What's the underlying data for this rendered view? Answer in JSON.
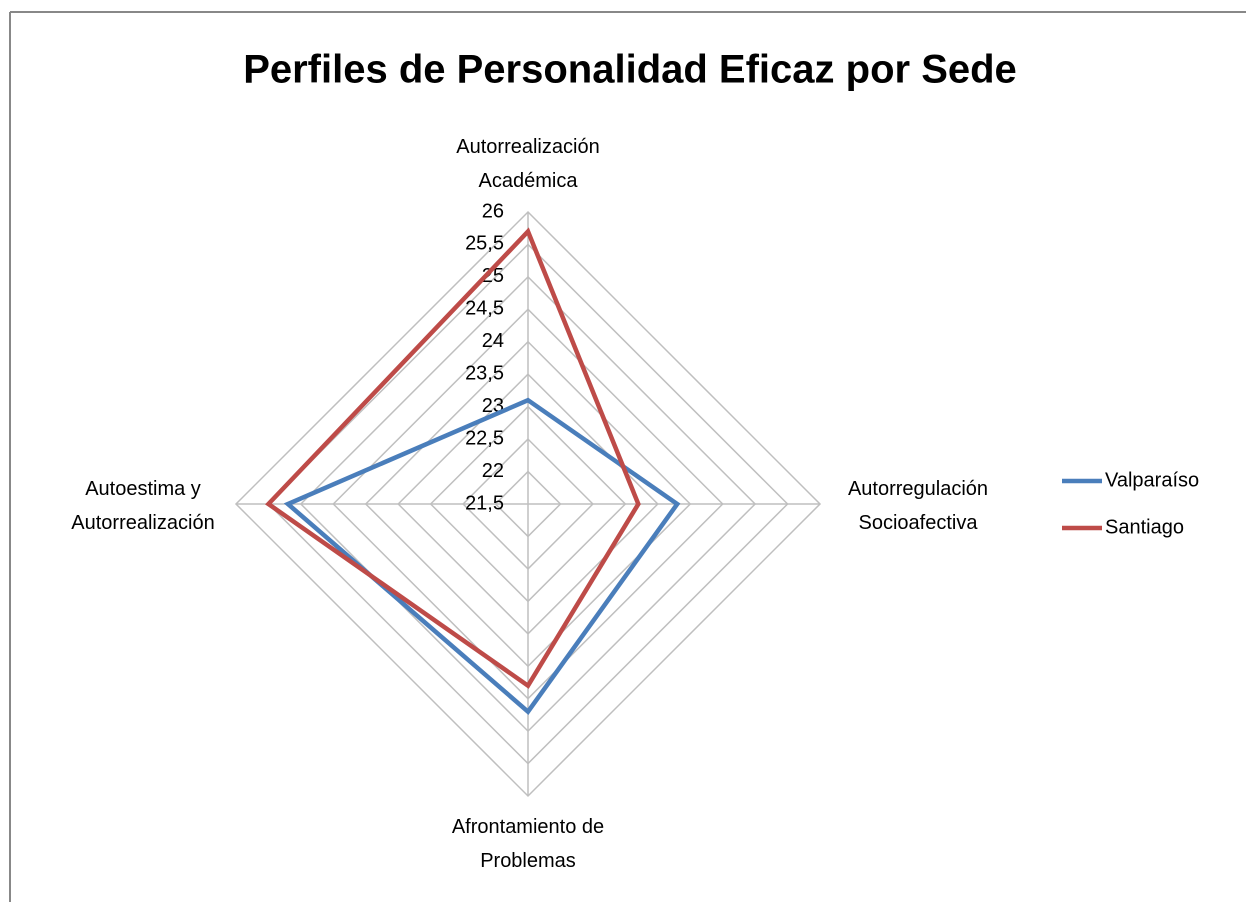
{
  "chart_data": {
    "type": "radar",
    "title": "Perfiles de Personalidad Eficaz por Sede",
    "categories": [
      "Autorrealización\nAcadémica",
      "Autorregulación\nSocioafectiva",
      "Afrontamiento de\nProblemas",
      "Autoestima y\nAutorrealización"
    ],
    "series": [
      {
        "name": "Valparaíso",
        "color": "#4a7ebb",
        "values": [
          23.1,
          23.8,
          24.7,
          25.2
        ]
      },
      {
        "name": "Santiago",
        "color": "#be4b48",
        "values": [
          25.7,
          23.2,
          24.3,
          25.5
        ]
      }
    ],
    "ylim": [
      21.5,
      26
    ],
    "yticks": [
      {
        "value": 21.5,
        "label": "21,5"
      },
      22,
      {
        "value": 22.5,
        "label": "22,5"
      },
      23,
      {
        "value": 23.5,
        "label": "23,5"
      },
      24,
      {
        "value": 24.5,
        "label": "24,5"
      },
      25,
      {
        "value": 25.5,
        "label": "25,5"
      },
      26
    ],
    "grid": true,
    "legend": "right"
  }
}
